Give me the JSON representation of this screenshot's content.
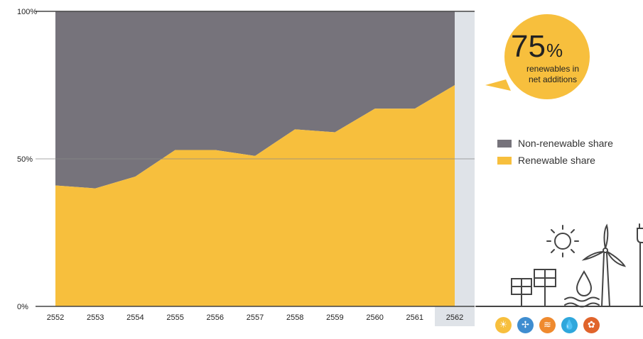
{
  "chart_data": {
    "type": "area",
    "stacked_percent": true,
    "x": [
      "2552",
      "2553",
      "2554",
      "2555",
      "2556",
      "2557",
      "2558",
      "2559",
      "2560",
      "2561",
      "2562"
    ],
    "series": [
      {
        "name": "Non-renewable share",
        "color": "#76737b",
        "values": [
          59,
          60,
          56,
          47,
          47,
          49,
          40,
          41,
          33,
          33,
          25
        ]
      },
      {
        "name": "Renewable share",
        "color": "#f7bf3d",
        "values": [
          41,
          40,
          44,
          53,
          53,
          51,
          60,
          59,
          67,
          67,
          75
        ]
      }
    ],
    "y_tick_labels": [
      "0%",
      "50%",
      "100%"
    ],
    "ylim": [
      0,
      100
    ],
    "highlight_category": "2562",
    "callout": {
      "value": "75",
      "unit": "%",
      "line1": "renewables in",
      "line2": "net additions"
    },
    "legend_position": "right"
  },
  "colors": {
    "renewable": "#f7bf3d",
    "non_renewable": "#76737b",
    "highlight_band": "#dfe3e8",
    "callout_bg": "#f7bf3d",
    "axis": "#444444",
    "illustration": "#444444"
  },
  "source_icons": [
    {
      "name": "solar-icon",
      "color": "#f7bf3d",
      "glyph": "☀"
    },
    {
      "name": "wind-icon",
      "color": "#3f8dd0",
      "glyph": "✢"
    },
    {
      "name": "geothermal-icon",
      "color": "#ef8a2e",
      "glyph": "≋"
    },
    {
      "name": "hydro-icon",
      "color": "#2fa7dc",
      "glyph": "💧"
    },
    {
      "name": "biomass-icon",
      "color": "#e0642b",
      "glyph": "✿"
    }
  ]
}
